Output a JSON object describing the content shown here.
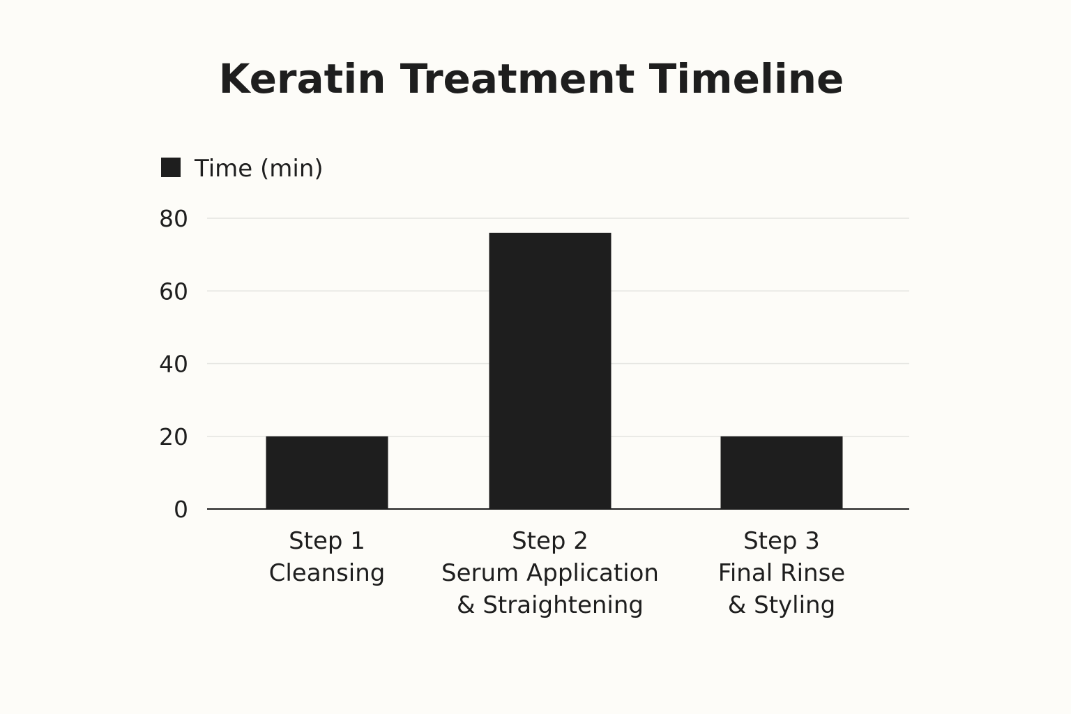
{
  "colors": {
    "background": "#fdfcf8",
    "bar": "#1e1e1e",
    "text": "#1e1e1e",
    "grid": "#e4e4e0"
  },
  "chart_data": {
    "type": "bar",
    "title": "Keratin Treatment Timeline",
    "xlabel": "",
    "ylabel": "",
    "ylim": [
      0,
      80
    ],
    "yticks": [
      0,
      20,
      40,
      60,
      80
    ],
    "grid": true,
    "legend_position": "top-left",
    "categories": [
      [
        "Step 1",
        "Cleansing"
      ],
      [
        "Step 2",
        "Serum Application",
        "& Straightening"
      ],
      [
        "Step 3",
        "Final Rinse",
        "& Styling"
      ]
    ],
    "series": [
      {
        "name": "Time (min)",
        "color": "#1e1e1e",
        "values": [
          20,
          76,
          20
        ]
      }
    ]
  }
}
